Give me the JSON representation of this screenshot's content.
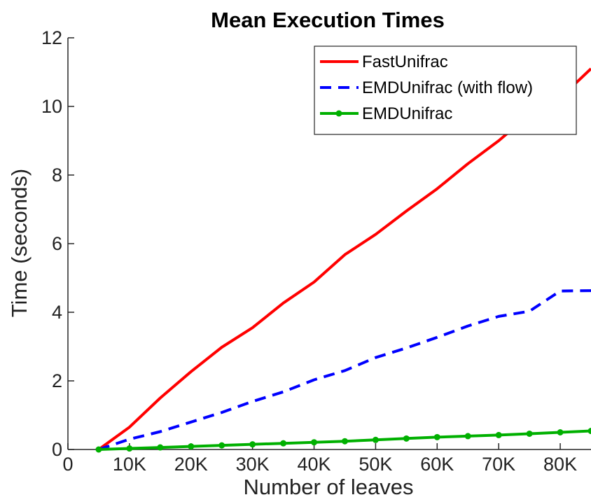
{
  "chart_data": {
    "type": "line",
    "title": "Mean Execution Times",
    "xlabel": "Number of leaves",
    "ylabel": "Time (seconds)",
    "xlim": [
      0,
      85000
    ],
    "ylim": [
      0,
      12
    ],
    "x_ticks": [
      0,
      10000,
      20000,
      30000,
      40000,
      50000,
      60000,
      70000,
      80000
    ],
    "x_tick_labels": [
      "0",
      "10K",
      "20K",
      "30K",
      "40K",
      "50K",
      "60K",
      "70K",
      "80K"
    ],
    "y_ticks": [
      0,
      2,
      4,
      6,
      8,
      10,
      12
    ],
    "y_tick_labels": [
      "0",
      "2",
      "4",
      "6",
      "8",
      "10",
      "12"
    ],
    "grid": false,
    "legend_position": "top-right",
    "x": [
      5000,
      10000,
      15000,
      20000,
      25000,
      30000,
      35000,
      40000,
      45000,
      50000,
      55000,
      60000,
      65000,
      70000,
      75000,
      80000,
      85000
    ],
    "series": [
      {
        "name": "FastUnifrac",
        "color": "#ff0000",
        "style": "solid",
        "marker": "none",
        "values": [
          0.0,
          0.65,
          1.5,
          2.27,
          2.98,
          3.55,
          4.27,
          4.88,
          5.68,
          6.27,
          6.95,
          7.6,
          8.33,
          9.0,
          9.76,
          10.25,
          11.1
        ]
      },
      {
        "name": "EMDUnifrac (with flow)",
        "color": "#0000ff",
        "style": "dashed",
        "marker": "none",
        "values": [
          0.0,
          0.3,
          0.52,
          0.8,
          1.08,
          1.4,
          1.68,
          2.03,
          2.3,
          2.68,
          2.96,
          3.27,
          3.6,
          3.88,
          4.03,
          4.62,
          4.63
        ]
      },
      {
        "name": "EMDUnifrac",
        "color": "#00b000",
        "style": "solid",
        "marker": "dot",
        "values": [
          0.0,
          0.03,
          0.06,
          0.09,
          0.12,
          0.15,
          0.18,
          0.21,
          0.24,
          0.28,
          0.32,
          0.36,
          0.39,
          0.42,
          0.46,
          0.5,
          0.54
        ]
      }
    ]
  }
}
